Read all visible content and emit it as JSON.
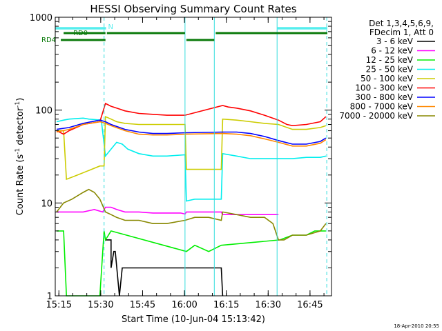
{
  "colors": {
    "background": "#ffffff",
    "axis": "#000000",
    "attenuator_bar": "#55eeee",
    "rd_bar": "#0a7a0a",
    "interval_marker": "#33dddd"
  },
  "chart_data": {
    "type": "line",
    "title": "HESSI Observing Summary Count Rates",
    "xlabel": "Start Time (10-Jun-04 15:13:42)",
    "ylabel_main": "Count Rate (s",
    "ylabel_sup1": "-1",
    "ylabel_mid": " detector",
    "ylabel_sup2": "-1",
    "ylabel_end": ")",
    "x_unit": "minutes since 15:13:42",
    "xlim": [
      0,
      99
    ],
    "ylim": [
      1,
      1000
    ],
    "yscale": "log",
    "grid": false,
    "legend_position": "right",
    "x_ticks": [
      {
        "value": 1.3,
        "label": "15:15"
      },
      {
        "value": 16.3,
        "label": "15:30"
      },
      {
        "value": 31.3,
        "label": "15:45"
      },
      {
        "value": 46.3,
        "label": "16:00"
      },
      {
        "value": 61.3,
        "label": "16:15"
      },
      {
        "value": 76.3,
        "label": "16:30"
      },
      {
        "value": 91.3,
        "label": "16:45"
      }
    ],
    "y_ticks": [
      {
        "value": 1,
        "label": "1"
      },
      {
        "value": 10,
        "label": "10"
      },
      {
        "value": 100,
        "label": "100"
      },
      {
        "value": 1000,
        "label": "1000"
      }
    ],
    "legend_header": [
      "Det 1,3,4,5,6,9,",
      "FDecim 1, Att 0"
    ],
    "series": [
      {
        "name": "3 - 6 keV",
        "color": "#000000",
        "x": [
          18,
          20,
          20,
          21,
          21.5,
          23,
          24,
          48,
          52,
          56,
          59.5,
          60
        ],
        "values": [
          4,
          4,
          2,
          3,
          3,
          1,
          2,
          2,
          2,
          2,
          2,
          1
        ]
      },
      {
        "name": "6 - 12 keV",
        "color": "#ff00ff",
        "x": [
          0.5,
          5,
          10,
          14,
          17,
          18,
          20,
          22,
          25,
          30,
          35,
          40,
          45,
          46.5,
          47,
          55,
          59.5,
          60,
          65,
          70,
          75,
          80
        ],
        "values": [
          8,
          8,
          8,
          8.5,
          8,
          9,
          9,
          8.5,
          8,
          8,
          7.8,
          7.8,
          7.8,
          7.6,
          8,
          8,
          8,
          7.5,
          7.5,
          7.5,
          7.5,
          7.5
        ]
      },
      {
        "name": "12 - 25 keV",
        "color": "#00ee00",
        "x": [
          0.5,
          3,
          4,
          8,
          16,
          17.5,
          18,
          20,
          47,
          50,
          55,
          59.5,
          80.5,
          85,
          90,
          93,
          97
        ],
        "values": [
          5,
          5,
          1,
          1,
          1,
          5,
          4,
          5,
          3,
          3.5,
          3,
          3.5,
          4,
          4.5,
          4.5,
          5,
          5
        ]
      },
      {
        "name": "25 - 50 keV",
        "color": "#00eeee",
        "x": [
          0.5,
          3,
          5,
          10,
          12,
          16.5,
          18,
          20,
          22,
          24,
          26,
          30,
          35,
          40,
          46.5,
          47,
          50,
          59.5,
          60,
          65,
          70,
          75,
          80.5,
          85,
          90,
          95,
          97
        ],
        "values": [
          75,
          78,
          80,
          82,
          80,
          78,
          32,
          38,
          45,
          43,
          38,
          34,
          32,
          32,
          33,
          10.5,
          11,
          11,
          34,
          32,
          30,
          30,
          30,
          30,
          31,
          31,
          32
        ]
      },
      {
        "name": "50 - 100 keV",
        "color": "#cccc00",
        "x": [
          0.5,
          3,
          4,
          8,
          16,
          17.5,
          18,
          20,
          22,
          25,
          30,
          35,
          40,
          46.5,
          47,
          55,
          59.5,
          60,
          65,
          70,
          75,
          80,
          85,
          90,
          95,
          97
        ],
        "values": [
          60,
          60,
          18,
          20,
          25,
          25,
          85,
          80,
          75,
          72,
          70,
          70,
          70,
          70,
          23,
          23,
          23,
          80,
          78,
          75,
          72,
          70,
          62,
          62,
          65,
          68
        ]
      },
      {
        "name": "100 - 300 keV",
        "color": "#ff0000",
        "x": [
          0.5,
          3,
          5,
          10,
          16,
          18,
          20,
          22,
          25,
          30,
          35,
          40,
          46.5,
          60,
          62,
          65,
          70,
          75,
          80,
          83,
          85,
          90,
          95,
          97
        ],
        "values": [
          60,
          55,
          60,
          70,
          75,
          118,
          110,
          105,
          98,
          92,
          90,
          88,
          88,
          112,
          108,
          105,
          98,
          88,
          78,
          70,
          68,
          70,
          75,
          85
        ]
      },
      {
        "name": "300 - 800 keV",
        "color": "#0000ff",
        "x": [
          0.5,
          5,
          10,
          16,
          18,
          20,
          25,
          30,
          35,
          40,
          46.5,
          60,
          65,
          70,
          75,
          80,
          85,
          90,
          95,
          97
        ],
        "values": [
          62,
          65,
          72,
          78,
          75,
          70,
          62,
          58,
          56,
          56,
          57,
          58,
          58,
          56,
          52,
          47,
          43,
          43,
          46,
          50
        ]
      },
      {
        "name": "800 - 7000 keV",
        "color": "#ff8800",
        "x": [
          0.5,
          5,
          10,
          16,
          18,
          20,
          25,
          30,
          35,
          40,
          46.5,
          60,
          65,
          70,
          75,
          80,
          85,
          90,
          95,
          97
        ],
        "values": [
          58,
          62,
          70,
          75,
          72,
          68,
          60,
          55,
          54,
          54,
          55,
          56,
          55,
          53,
          49,
          45,
          41,
          41,
          44,
          48
        ]
      },
      {
        "name": "7000 - 20000 keV",
        "color": "#888800",
        "x": [
          0.5,
          3,
          6,
          10,
          12,
          14,
          16,
          18,
          20,
          22,
          25,
          30,
          35,
          40,
          46.5,
          50,
          55,
          59.5,
          60,
          65,
          70,
          75,
          78,
          80,
          82,
          85,
          90,
          95,
          97
        ],
        "values": [
          8,
          10,
          11,
          13,
          14,
          13,
          11,
          8,
          7.5,
          7,
          6.5,
          6.5,
          6,
          6,
          6.5,
          7,
          7,
          6.5,
          8,
          7.5,
          7,
          7,
          6,
          4,
          4,
          4.5,
          4.5,
          5,
          6
        ]
      }
    ],
    "attenuator_segments": [
      {
        "x0": 0,
        "x1": 18.2,
        "label": ""
      },
      {
        "x0": 79.5,
        "x1": 97.5,
        "label": ""
      }
    ],
    "attenuator_annotation": "N",
    "rd_segments": [
      {
        "x0": 3,
        "x1": 18,
        "row": 1,
        "label": "RD0"
      },
      {
        "x0": 2,
        "x1": 18,
        "row": 2,
        "label": "RD4"
      },
      {
        "x0": 18.5,
        "x1": 46.5,
        "row": 1,
        "label": ""
      },
      {
        "x0": 47,
        "x1": 57,
        "row": 2,
        "label": ""
      },
      {
        "x0": 57.5,
        "x1": 97.5,
        "row": 1,
        "label": ""
      }
    ],
    "interval_markers_solid": [
      0,
      46.5,
      57,
      79.5
    ],
    "interval_markers_dashed": [
      17.5,
      97.3
    ]
  },
  "timestamp": "18-Apr-2010 20:55"
}
